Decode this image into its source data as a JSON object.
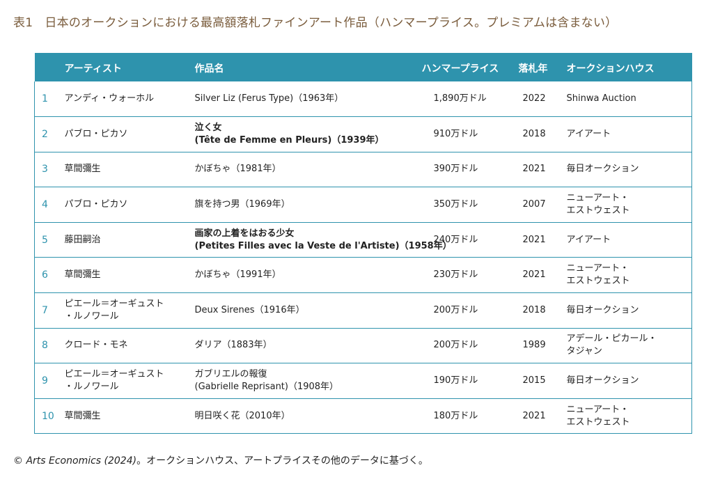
{
  "title": "表1　日本のオークションにおける最高額落札ファインアート作品（ハンマープライス。プレミアムは含まない）",
  "table": {
    "headers": {
      "no": "",
      "artist": "アーティスト",
      "work": "作品名",
      "price": "ハンマープライス",
      "year": "落札年",
      "house": "オークションハウス"
    },
    "rows": [
      {
        "no": "1",
        "artist": [
          "アンディ・ウォーホル"
        ],
        "work": [
          "Silver Liz (Ferus Type)（1963年）"
        ],
        "work_bold": false,
        "price": "1,890万ドル",
        "year": "2022",
        "house": [
          "Shinwa Auction"
        ]
      },
      {
        "no": "2",
        "artist": [
          "パブロ・ピカソ"
        ],
        "work": [
          "泣く女",
          "(Tête de Femme en Pleurs)（1939年）"
        ],
        "work_bold": true,
        "price": "910万ドル",
        "year": "2018",
        "house": [
          "アイアート"
        ]
      },
      {
        "no": "3",
        "artist": [
          "草間彌生"
        ],
        "work": [
          "かぼちゃ（1981年）"
        ],
        "work_bold": false,
        "price": "390万ドル",
        "year": "2021",
        "house": [
          "毎日オークション"
        ]
      },
      {
        "no": "4",
        "artist": [
          "パブロ・ピカソ"
        ],
        "work": [
          "旗を持つ男（1969年）"
        ],
        "work_bold": false,
        "price": "350万ドル",
        "year": "2007",
        "house": [
          "ニューアート・",
          "エストウェスト"
        ]
      },
      {
        "no": "5",
        "artist": [
          "藤田嗣治"
        ],
        "work": [
          "画家の上着をはおる少女",
          "(Petites Filles avec la Veste de l'Artiste)（1958年）"
        ],
        "work_bold": true,
        "price": "240万ドル",
        "year": "2021",
        "house": [
          "アイアート"
        ]
      },
      {
        "no": "6",
        "artist": [
          "草間彌生"
        ],
        "work": [
          "かぼちゃ（1991年）"
        ],
        "work_bold": false,
        "price": "230万ドル",
        "year": "2021",
        "house": [
          "ニューアート・",
          "エストウェスト"
        ]
      },
      {
        "no": "7",
        "artist": [
          "ピエール＝オーギュスト",
          "・ルノワール"
        ],
        "work": [
          "Deux Sirenes（1916年）"
        ],
        "work_bold": false,
        "price": "200万ドル",
        "year": "2018",
        "house": [
          "毎日オークション"
        ]
      },
      {
        "no": "8",
        "artist": [
          "クロード・モネ"
        ],
        "work": [
          "ダリア（1883年）"
        ],
        "work_bold": false,
        "price": "200万ドル",
        "year": "1989",
        "house": [
          "アデール・ピカール・",
          "タジャン"
        ]
      },
      {
        "no": "9",
        "artist": [
          "ピエール＝オーギュスト",
          "・ルノワール"
        ],
        "work": [
          "ガブリエルの報復",
          "(Gabrielle Reprisant)（1908年）"
        ],
        "work_bold": false,
        "price": "190万ドル",
        "year": "2015",
        "house": [
          "毎日オークション"
        ]
      },
      {
        "no": "10",
        "artist": [
          "草間彌生"
        ],
        "work": [
          "明日咲く花（2010年）"
        ],
        "work_bold": false,
        "price": "180万ドル",
        "year": "2021",
        "house": [
          "ニューアート・",
          "エストウェスト"
        ]
      }
    ]
  },
  "footer": {
    "source": "© Arts Economics (2024)",
    "note": "。オークションハウス、アートプライスその他のデータに基づく。"
  },
  "colors": {
    "header_bg": "#2e93ad",
    "border": "#2e93ad",
    "title_text": "#7a5c3c",
    "index_text": "#2e93ad"
  }
}
